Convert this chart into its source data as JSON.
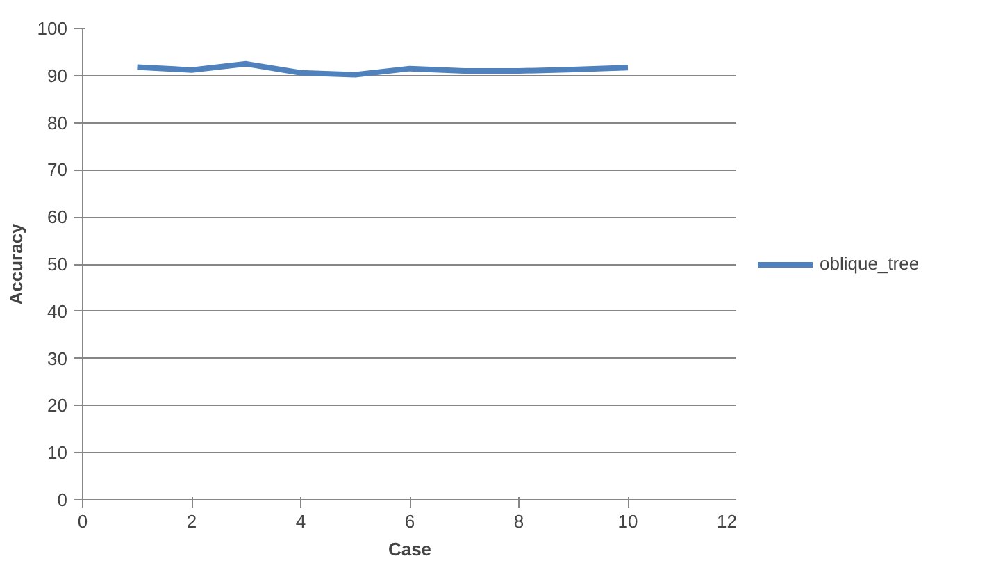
{
  "chart_data": {
    "type": "line",
    "xlabel": "Case",
    "ylabel": "Accuracy",
    "x": [
      1,
      2,
      3,
      4,
      5,
      6,
      7,
      8,
      9,
      10
    ],
    "series": [
      {
        "name": "oblique_tree",
        "color": "#4f81bd",
        "values": [
          91.8,
          91.2,
          92.5,
          90.6,
          90.2,
          91.5,
          91,
          91,
          91.3,
          91.7
        ]
      }
    ],
    "xlim": [
      0,
      12
    ],
    "xticks": [
      0,
      2,
      4,
      6,
      8,
      10,
      12
    ],
    "ylim": [
      0,
      100
    ],
    "yticks": [
      0,
      10,
      20,
      30,
      40,
      50,
      60,
      70,
      80,
      90,
      100
    ],
    "grid": "y",
    "legend": "right",
    "marker": "none",
    "line_style": "solid"
  }
}
